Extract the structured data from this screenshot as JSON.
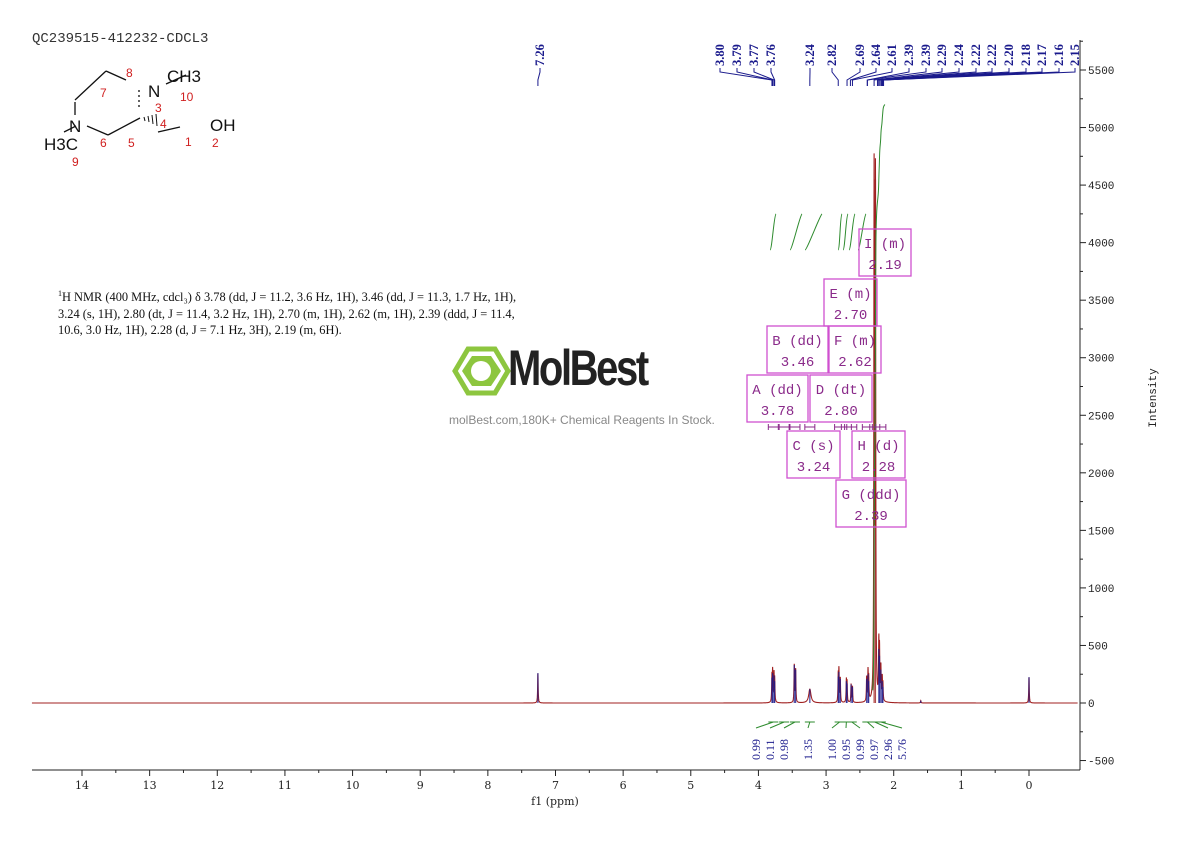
{
  "title": "QC239515-412232-CDCL3",
  "description": {
    "lines": [
      "H NMR (400 MHz, cdcl₃) δ 3.78 (dd, J = 11.2, 3.6 Hz, 1H), 3.46 (dd, J = 11.3, 1.7 Hz, 1H),",
      "3.24 (s, 1H), 2.80 (dt, J = 11.4, 3.2 Hz, 1H), 2.70 (m, 1H), 2.62 (m, 1H), 2.39 (ddd, J = 11.4,",
      "10.6, 3.0 Hz, 1H), 2.28 (d, J = 7.1 Hz, 3H), 2.19 (m, 6H)."
    ],
    "superscript": "1"
  },
  "watermark": {
    "brand": "MolBest",
    "tagline": "molBest.com,180K+ Chemical Reagents In Stock."
  },
  "structure": {
    "atoms": [
      "N",
      "CH3",
      "N",
      "H3C",
      "OH"
    ],
    "numbers": [
      "1",
      "2",
      "3",
      "4",
      "5",
      "6",
      "7",
      "8",
      "9",
      "10"
    ]
  },
  "chart_data": {
    "type": "line",
    "title": "QC239515-412232-CDCL3",
    "xlabel": "f1 (ppm)",
    "ylabel": "Intensity",
    "xlim": [
      14.74,
      -0.72
    ],
    "ylim": [
      -600,
      5800
    ],
    "xticks": [
      14,
      13,
      12,
      11,
      10,
      9,
      8,
      7,
      6,
      5,
      4,
      3,
      2,
      1,
      0
    ],
    "yticks": [
      -500,
      0,
      500,
      1000,
      1500,
      2000,
      2500,
      3000,
      3500,
      4000,
      4500,
      5000,
      5500
    ],
    "colors": {
      "spectrum": "#a02020",
      "peak_label": "#1a1a8c",
      "integral": "#2e8b2e",
      "multiplet": "#d050d0"
    },
    "peaks": [
      {
        "ppm": 7.26,
        "h": 260
      },
      {
        "ppm": 3.8,
        "h": 220
      },
      {
        "ppm": 3.79,
        "h": 260
      },
      {
        "ppm": 3.77,
        "h": 240
      },
      {
        "ppm": 3.76,
        "h": 190
      },
      {
        "ppm": 3.47,
        "h": 330
      },
      {
        "ppm": 3.45,
        "h": 290
      },
      {
        "ppm": 3.24,
        "h": 120,
        "w": 0.02
      },
      {
        "ppm": 2.82,
        "h": 230
      },
      {
        "ppm": 2.81,
        "h": 270
      },
      {
        "ppm": 2.79,
        "h": 210
      },
      {
        "ppm": 2.7,
        "h": 190
      },
      {
        "ppm": 2.69,
        "h": 170
      },
      {
        "ppm": 2.63,
        "h": 160
      },
      {
        "ppm": 2.61,
        "h": 140
      },
      {
        "ppm": 2.4,
        "h": 210
      },
      {
        "ppm": 2.38,
        "h": 250
      },
      {
        "ppm": 2.37,
        "h": 190
      },
      {
        "ppm": 2.29,
        "h": 4550
      },
      {
        "ppm": 2.27,
        "h": 4550
      },
      {
        "ppm": 2.22,
        "h": 470
      },
      {
        "ppm": 2.21,
        "h": 410
      },
      {
        "ppm": 2.19,
        "h": 290
      },
      {
        "ppm": 2.17,
        "h": 190
      },
      {
        "ppm": 2.16,
        "h": 140
      },
      {
        "ppm": 1.6,
        "h": 20
      },
      {
        "ppm": 0.0,
        "h": 225
      }
    ],
    "peak_labels": [
      "7.26",
      "3.80",
      "3.79",
      "3.77",
      "3.76",
      "3.24",
      "2.82",
      "2.69",
      "2.64",
      "2.61",
      "2.39",
      "2.39",
      "2.29",
      "2.24",
      "2.22",
      "2.22",
      "2.20",
      "2.18",
      "2.17",
      "2.16",
      "2.15"
    ],
    "integrals": [
      "0.99",
      "0.11",
      "0.98",
      "1.35",
      "1.00",
      "0.95",
      "0.99",
      "0.97",
      "2.96",
      "5.76"
    ],
    "multiplets": [
      {
        "label": "A (dd)",
        "shift": "3.78"
      },
      {
        "label": "B (dd)",
        "shift": "3.46"
      },
      {
        "label": "C (s)",
        "shift": "3.24"
      },
      {
        "label": "D (dt)",
        "shift": "2.80"
      },
      {
        "label": "E (m)",
        "shift": "2.70"
      },
      {
        "label": "F (m)",
        "shift": "2.62"
      },
      {
        "label": "G (ddd)",
        "shift": "2.39"
      },
      {
        "label": "H (d)",
        "shift": "2.28"
      },
      {
        "label": "I (m)",
        "shift": "2.19"
      }
    ]
  }
}
